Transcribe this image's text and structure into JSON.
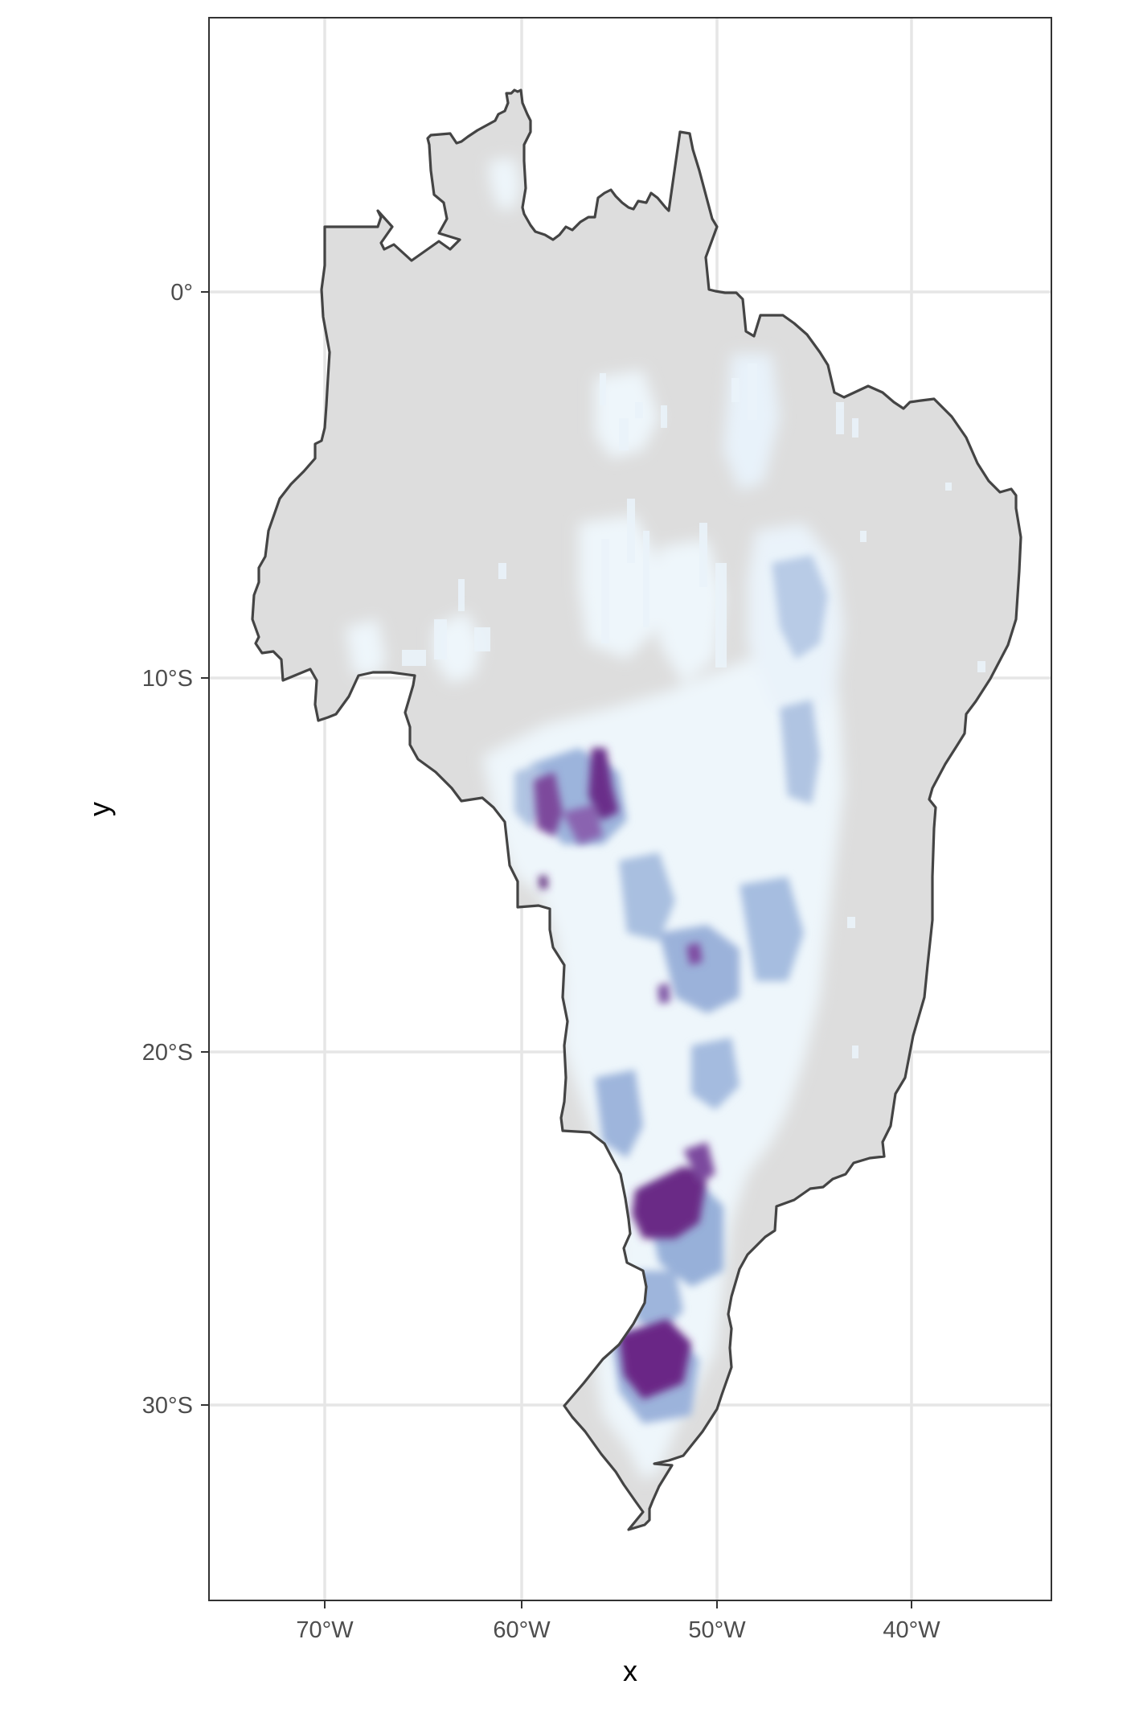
{
  "map": {
    "type": "raster-map",
    "x_title": "x",
    "y_title": "y",
    "x_ticks": [
      "70°W",
      "60°W",
      "50°W",
      "40°W"
    ],
    "y_ticks": [
      "0°",
      "10°S",
      "20°S",
      "30°S"
    ],
    "x_tick_values": [
      -70,
      -60,
      -50,
      -40
    ],
    "y_tick_values": [
      0,
      -10,
      -20,
      -30
    ],
    "lon_range": [
      -76,
      -33
    ],
    "lat_range": [
      -34.5,
      7
    ],
    "grid": true,
    "legend": "none",
    "colors": {
      "background": "#ffffff",
      "land": "#dddddd",
      "border": "#444444",
      "grid": "#e6e6e6",
      "scale_low": "#eef6fb",
      "scale_mid": "#8ea8d4",
      "scale_high": "#6a1a80"
    }
  }
}
